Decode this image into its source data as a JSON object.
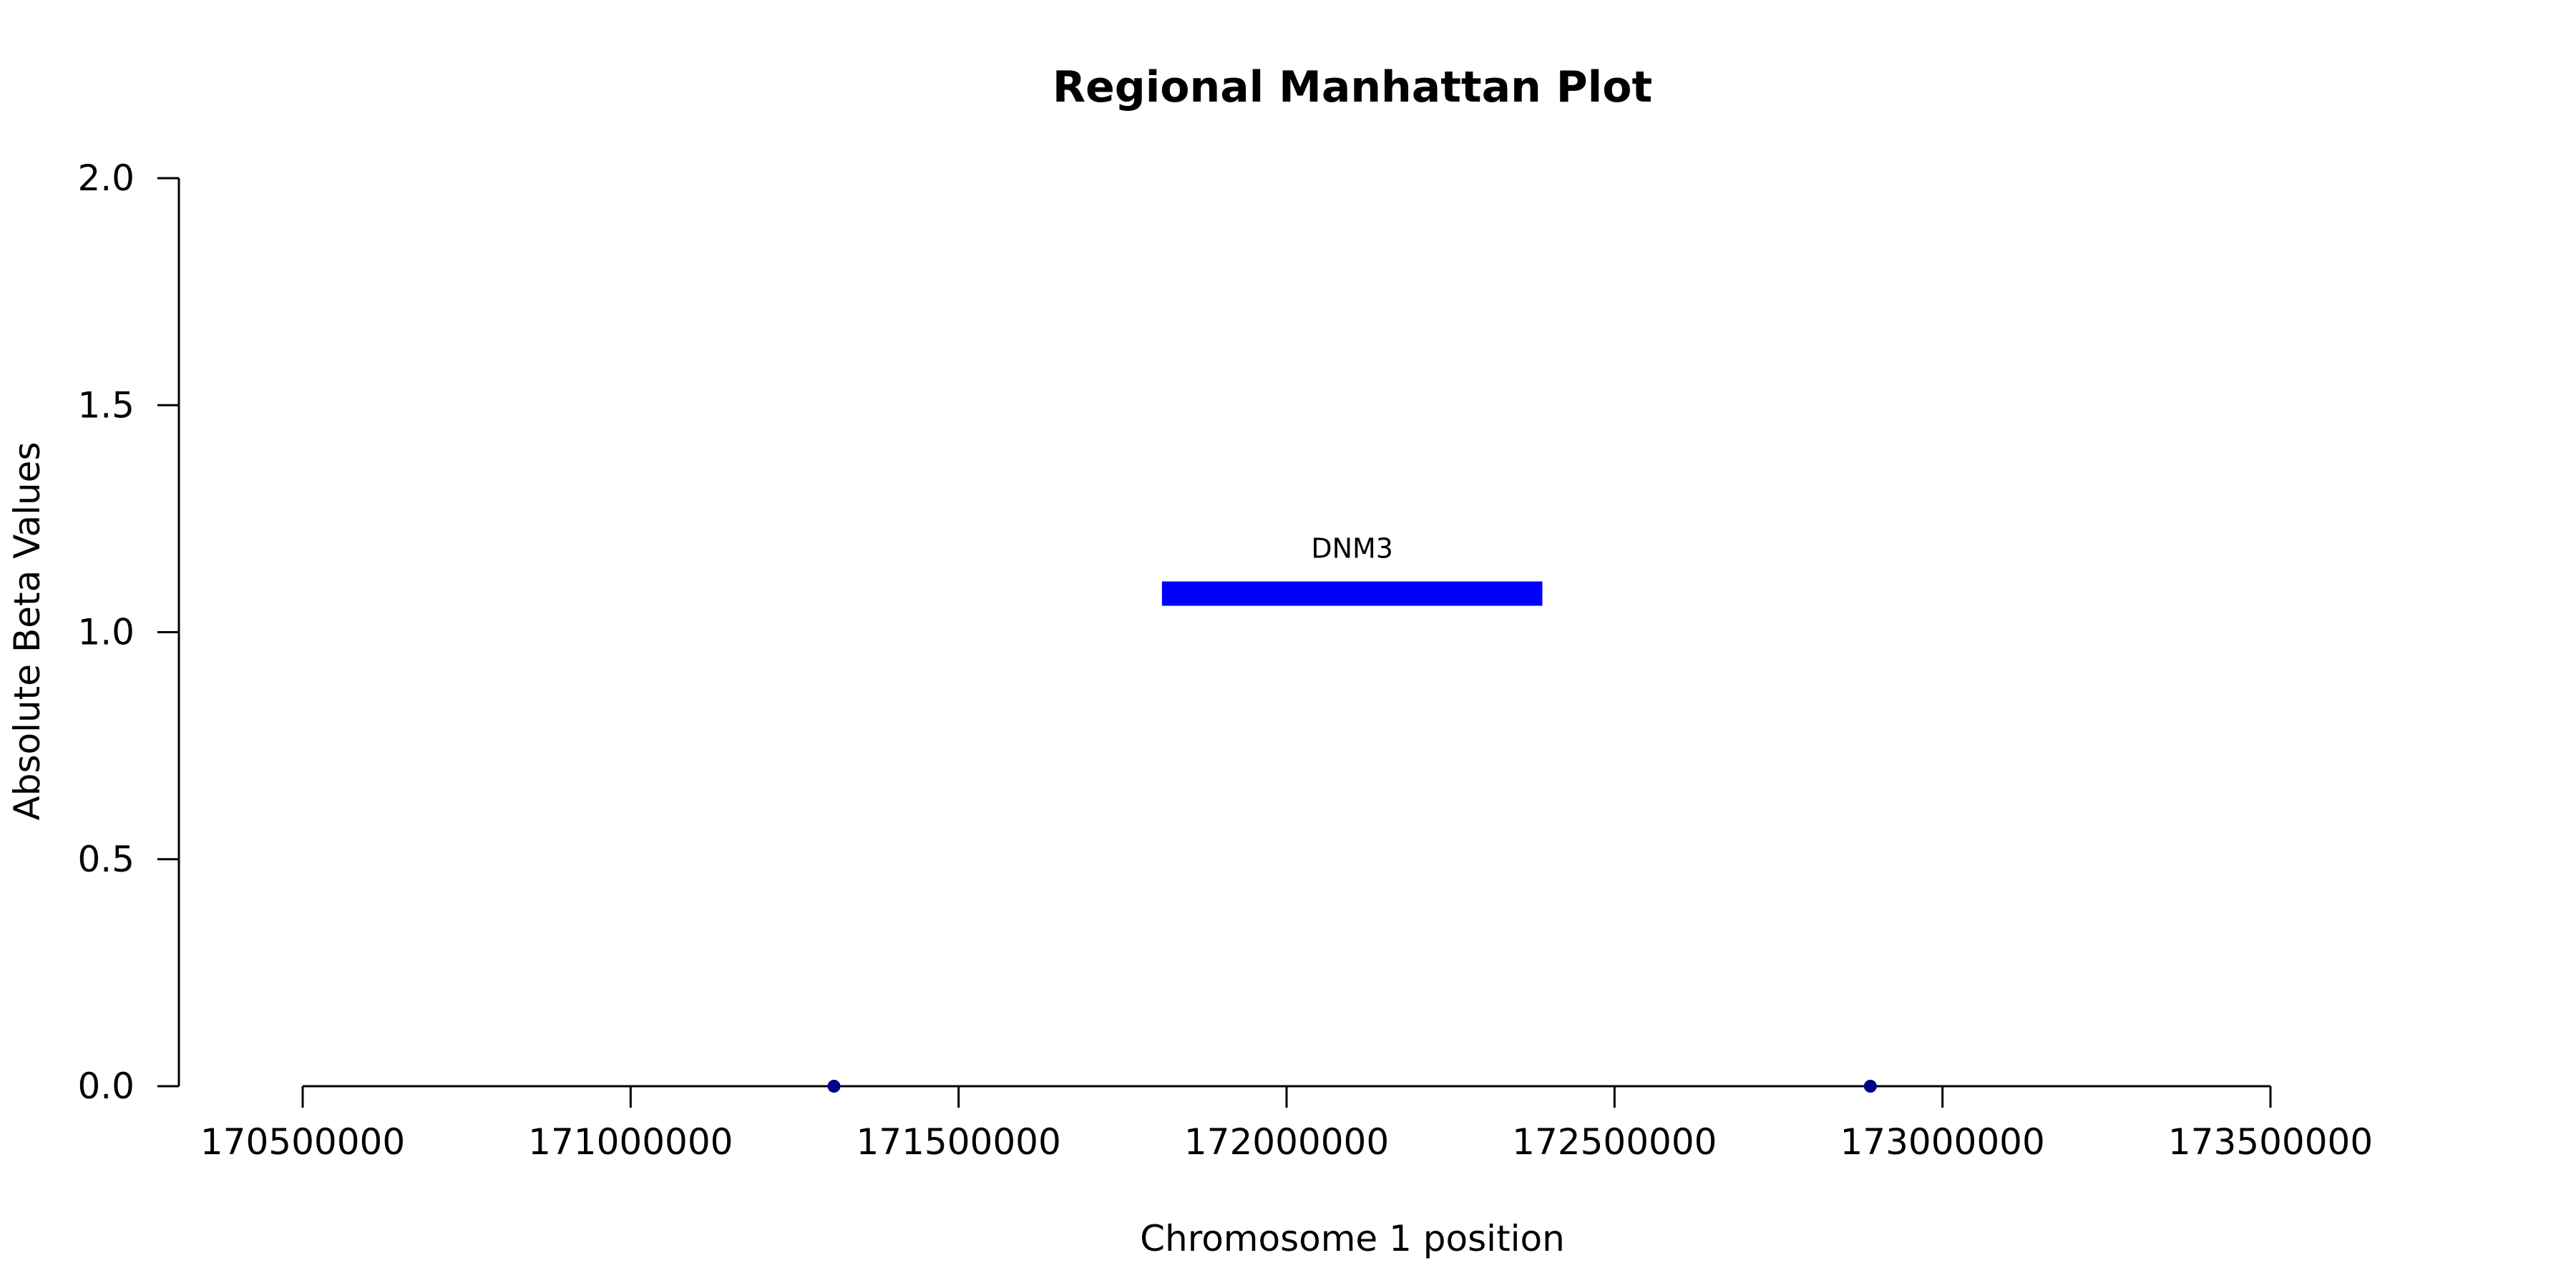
{
  "chart_data": {
    "type": "scatter",
    "title": "Regional Manhattan Plot",
    "xlabel": "Chromosome 1 position",
    "ylabel": "Absolute Beta Values",
    "xlim": [
      170500000,
      173500000
    ],
    "ylim": [
      0,
      2.0
    ],
    "x_ticks": [
      170500000,
      171000000,
      171500000,
      172000000,
      172500000,
      173000000,
      173500000
    ],
    "y_ticks": [
      "0.0",
      "0.5",
      "1.0",
      "1.5",
      "2.0"
    ],
    "grid": false,
    "points": [
      {
        "x": 171310000,
        "y": 0.0
      },
      {
        "x": 172890000,
        "y": 0.0
      }
    ],
    "point_color": "#00008b",
    "genes": [
      {
        "name": "DNM3",
        "start": 171810000,
        "end": 172390000,
        "y": 1.085,
        "color": "#0000ff"
      }
    ]
  }
}
